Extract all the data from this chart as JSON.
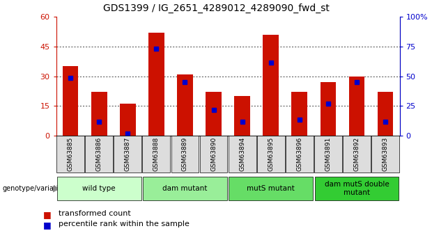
{
  "title": "GDS1399 / IG_2651_4289012_4289090_fwd_st",
  "samples": [
    "GSM63885",
    "GSM63886",
    "GSM63887",
    "GSM63888",
    "GSM63889",
    "GSM63890",
    "GSM63894",
    "GSM63895",
    "GSM63896",
    "GSM63891",
    "GSM63892",
    "GSM63893"
  ],
  "red_values": [
    35,
    22,
    16,
    52,
    31,
    22,
    20,
    51,
    22,
    27,
    30,
    22
  ],
  "blue_values": [
    29,
    7,
    1,
    44,
    27,
    13,
    7,
    37,
    8,
    16,
    27,
    7
  ],
  "groups": [
    {
      "label": "wild type",
      "start": 0,
      "end": 3,
      "color": "#ccffcc"
    },
    {
      "label": "dam mutant",
      "start": 3,
      "end": 6,
      "color": "#99ee99"
    },
    {
      "label": "mutS mutant",
      "start": 6,
      "end": 9,
      "color": "#66dd66"
    },
    {
      "label": "dam mutS double\nmutant",
      "start": 9,
      "end": 12,
      "color": "#33cc33"
    }
  ],
  "ylim_left": [
    0,
    60
  ],
  "ylim_right": [
    0,
    100
  ],
  "yticks_left": [
    0,
    15,
    30,
    45,
    60
  ],
  "yticks_right": [
    0,
    25,
    50,
    75,
    100
  ],
  "ytick_labels_right": [
    "0",
    "25",
    "50",
    "75",
    "100%"
  ],
  "bar_color": "#cc1100",
  "blue_color": "#0000cc",
  "left_tick_color": "#cc1100",
  "right_tick_color": "#0000cc",
  "background_color": "#ffffff",
  "plot_bg_color": "#ffffff",
  "xtick_bg_color": "#dddddd"
}
